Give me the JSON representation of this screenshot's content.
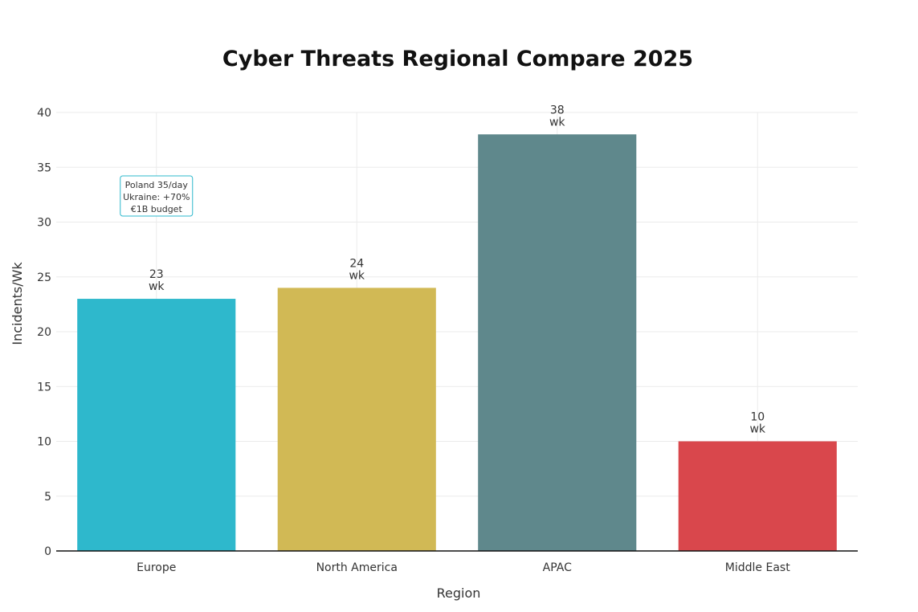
{
  "chart_data": {
    "type": "bar",
    "title": "Cyber Threats Regional Compare 2025",
    "xlabel": "Region",
    "ylabel": "Incidents/Wk",
    "categories": [
      "Europe",
      "North America",
      "APAC",
      "Middle East"
    ],
    "values": [
      23,
      24,
      38,
      10
    ],
    "value_labels": [
      [
        "23",
        "wk"
      ],
      [
        "24",
        "wk"
      ],
      [
        "38",
        "wk"
      ],
      [
        "10",
        "wk"
      ]
    ],
    "colors": [
      "#2EB8CC",
      "#D1B955",
      "#5F888C",
      "#D9474C"
    ],
    "ylim": [
      0,
      40
    ],
    "yticks": [
      0,
      5,
      10,
      15,
      20,
      25,
      30,
      35,
      40
    ],
    "grid": true,
    "annotation": {
      "category": "Europe",
      "lines": [
        "Poland 35/day",
        "Ukraine: +70%",
        "€1B budget"
      ],
      "border_color": "#2EB8CC"
    }
  }
}
